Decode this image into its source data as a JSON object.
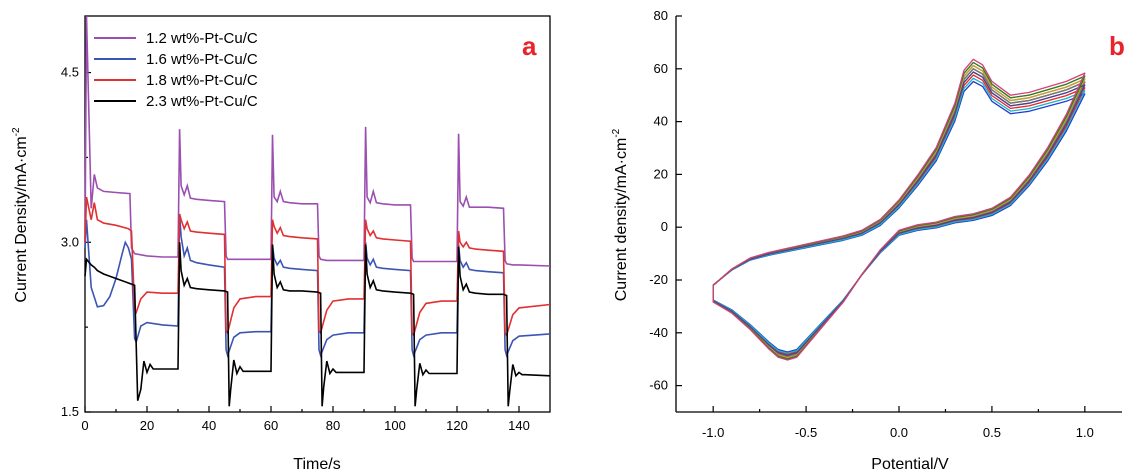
{
  "chart_data": [
    {
      "type": "line",
      "panel_label": "a",
      "xlabel": "Time/s",
      "ylabel": "Current Density/mA·cm",
      "ylabel_sup": "-2",
      "xlim": [
        0,
        150
      ],
      "ylim": [
        1.5,
        5.0
      ],
      "xticks": [
        "0",
        "20",
        "40",
        "60",
        "80",
        "100",
        "120",
        "140"
      ],
      "yticks": [
        "1.5",
        "3.0",
        "4.5"
      ],
      "legend_position": "top-left",
      "series": [
        {
          "name": "1.2 wt%-Pt-Cu/C",
          "color": "#9b4fb0",
          "x": [
            0,
            0.5,
            2,
            3,
            4,
            6,
            10,
            14.5,
            15,
            16,
            20,
            25,
            30,
            30.5,
            31,
            32,
            33,
            34,
            36,
            40,
            45,
            45.5,
            46,
            48,
            50,
            55,
            60,
            60.5,
            61,
            62,
            63,
            64,
            66,
            70,
            75,
            75.5,
            76,
            78,
            80,
            85,
            90,
            90.5,
            91,
            92,
            93,
            94,
            96,
            100,
            105,
            105.5,
            106,
            108,
            110,
            115,
            120,
            120.5,
            121,
            122,
            123,
            124,
            126,
            130,
            135,
            135.5,
            136,
            138,
            140,
            150
          ],
          "y": [
            3.0,
            5.0,
            3.3,
            3.6,
            3.48,
            3.45,
            3.44,
            3.43,
            2.95,
            2.9,
            2.88,
            2.87,
            2.87,
            4.0,
            3.5,
            3.42,
            3.5,
            3.39,
            3.38,
            3.37,
            3.36,
            2.88,
            2.85,
            2.85,
            2.85,
            2.85,
            2.85,
            3.95,
            3.4,
            3.36,
            3.45,
            3.36,
            3.35,
            3.34,
            3.34,
            2.88,
            2.85,
            2.84,
            2.84,
            2.84,
            2.84,
            4.02,
            3.4,
            3.35,
            3.45,
            3.35,
            3.34,
            3.33,
            3.33,
            2.86,
            2.83,
            2.83,
            2.83,
            2.83,
            2.83,
            3.96,
            3.36,
            3.32,
            3.4,
            3.31,
            3.31,
            3.31,
            3.3,
            2.84,
            2.81,
            2.8,
            2.8,
            2.79
          ]
        },
        {
          "name": "1.6 wt%-Pt-Cu/C",
          "color": "#3b55b5",
          "x": [
            0,
            0.5,
            2,
            4,
            6,
            8,
            10,
            12,
            13,
            14,
            15,
            16,
            16.5,
            18,
            20,
            25,
            30,
            30.5,
            31,
            32,
            33,
            34,
            36,
            40,
            45,
            45.5,
            46,
            48,
            50,
            55,
            60,
            60.5,
            61,
            62,
            63,
            64,
            66,
            70,
            75,
            75.5,
            76,
            78,
            80,
            85,
            90,
            90.5,
            91,
            92,
            93,
            94,
            96,
            100,
            105,
            105.5,
            106,
            108,
            110,
            115,
            120,
            120.5,
            121,
            122,
            123,
            124,
            126,
            130,
            135,
            135.5,
            136,
            138,
            140,
            150
          ],
          "y": [
            2.95,
            3.2,
            2.6,
            2.43,
            2.44,
            2.52,
            2.68,
            2.9,
            3.0,
            2.95,
            2.85,
            2.15,
            2.12,
            2.26,
            2.29,
            2.27,
            2.26,
            3.25,
            3.05,
            2.88,
            2.95,
            2.84,
            2.82,
            2.8,
            2.78,
            2.05,
            2.0,
            2.16,
            2.2,
            2.21,
            2.21,
            2.98,
            2.86,
            2.8,
            2.84,
            2.78,
            2.77,
            2.76,
            2.75,
            2.05,
            2.0,
            2.14,
            2.18,
            2.2,
            2.2,
            3.0,
            2.86,
            2.8,
            2.85,
            2.78,
            2.77,
            2.76,
            2.75,
            2.05,
            2.0,
            2.14,
            2.18,
            2.2,
            2.2,
            2.98,
            2.84,
            2.78,
            2.82,
            2.76,
            2.75,
            2.74,
            2.73,
            2.05,
            2.0,
            2.13,
            2.17,
            2.19
          ]
        },
        {
          "name": "1.8 wt%-Pt-Cu/C",
          "color": "#e03030",
          "x": [
            0,
            0.5,
            2,
            3,
            4,
            6,
            10,
            14,
            15,
            16,
            16.5,
            18,
            20,
            25,
            30,
            30.5,
            31,
            32,
            33,
            34,
            36,
            40,
            45,
            45.5,
            46,
            48,
            50,
            55,
            60,
            60.5,
            61,
            62,
            63,
            64,
            66,
            70,
            75,
            75.5,
            76,
            78,
            80,
            85,
            90,
            90.5,
            91,
            92,
            93,
            94,
            96,
            100,
            105,
            105.5,
            106,
            108,
            110,
            115,
            120,
            120.5,
            121,
            122,
            123,
            124,
            126,
            130,
            135,
            135.5,
            136,
            138,
            140,
            150
          ],
          "y": [
            3.0,
            3.4,
            3.2,
            3.35,
            3.2,
            3.17,
            3.15,
            3.12,
            3.1,
            2.4,
            2.38,
            2.5,
            2.56,
            2.55,
            2.55,
            3.25,
            3.2,
            3.12,
            3.18,
            3.1,
            3.09,
            3.08,
            3.07,
            2.22,
            2.2,
            2.42,
            2.5,
            2.52,
            2.52,
            3.2,
            3.14,
            3.08,
            3.13,
            3.06,
            3.05,
            3.04,
            3.03,
            2.22,
            2.2,
            2.4,
            2.48,
            2.5,
            2.5,
            3.2,
            3.12,
            3.06,
            3.1,
            3.04,
            3.03,
            3.02,
            3.01,
            2.2,
            2.18,
            2.38,
            2.46,
            2.48,
            2.48,
            3.1,
            3.0,
            2.96,
            3.0,
            2.95,
            2.94,
            2.93,
            2.92,
            2.2,
            2.18,
            2.36,
            2.42,
            2.45
          ]
        },
        {
          "name": "2.3 wt%-Pt-Cu/C",
          "color": "#000000",
          "x": [
            0,
            0.5,
            2,
            3,
            4,
            6,
            10,
            15,
            16,
            17,
            18,
            19,
            20,
            21,
            22,
            25,
            30,
            30.5,
            31,
            32,
            33,
            34,
            36,
            40,
            45,
            46,
            46.5,
            47,
            48,
            49,
            50,
            51,
            52,
            55,
            60,
            60.5,
            61,
            62,
            63,
            64,
            66,
            70,
            75,
            76,
            76.5,
            77,
            78,
            79,
            80,
            81,
            82,
            85,
            90,
            90.5,
            91,
            92,
            93,
            94,
            96,
            100,
            105,
            106,
            106.5,
            107,
            108,
            109,
            110,
            111,
            112,
            115,
            120,
            120.5,
            121,
            122,
            123,
            124,
            126,
            130,
            135,
            136,
            136.5,
            137,
            138,
            139,
            140,
            141,
            142,
            150
          ],
          "y": [
            2.7,
            2.85,
            2.8,
            2.78,
            2.75,
            2.72,
            2.68,
            2.63,
            2.62,
            1.6,
            1.7,
            1.95,
            1.85,
            1.92,
            1.88,
            1.88,
            1.88,
            3.0,
            2.75,
            2.62,
            2.68,
            2.6,
            2.59,
            2.58,
            2.57,
            2.56,
            1.55,
            1.7,
            1.96,
            1.84,
            1.9,
            1.86,
            1.86,
            1.86,
            1.86,
            2.98,
            2.72,
            2.6,
            2.65,
            2.58,
            2.57,
            2.57,
            2.56,
            2.55,
            1.55,
            1.72,
            1.95,
            1.84,
            1.88,
            1.85,
            1.85,
            1.85,
            1.85,
            2.98,
            2.72,
            2.6,
            2.66,
            2.58,
            2.57,
            2.56,
            2.55,
            2.54,
            1.55,
            1.7,
            1.93,
            1.83,
            1.87,
            1.84,
            1.84,
            1.84,
            1.84,
            2.96,
            2.7,
            2.58,
            2.63,
            2.56,
            2.55,
            2.54,
            2.54,
            2.53,
            1.55,
            1.68,
            1.92,
            1.82,
            1.85,
            1.83,
            1.83,
            1.82
          ]
        }
      ]
    },
    {
      "type": "line",
      "panel_label": "b",
      "xlabel": "Potential/V",
      "ylabel": "Current density/mA·cm",
      "ylabel_sup": "-2",
      "xlim": [
        -1.2,
        1.2
      ],
      "ylim": [
        -70,
        80
      ],
      "xticks": [
        "-1.0",
        "-0.5",
        "0.0",
        "0.5",
        "1.0"
      ],
      "yticks": [
        "-60",
        "-40",
        "-20",
        "0",
        "20",
        "40",
        "60",
        "80"
      ],
      "grid": false,
      "curve_colors": [
        "#000000",
        "#e8242a",
        "#1f3fcf",
        "#22a84a",
        "#9b4fb0",
        "#e07b21",
        "#18b3c8",
        "#7a7a7a",
        "#c8a020",
        "#5c3a8f",
        "#2a7f2a",
        "#d4407a"
      ],
      "cycle_template": {
        "x": [
          -1.0,
          -0.9,
          -0.8,
          -0.7,
          -0.6,
          -0.5,
          -0.4,
          -0.3,
          -0.2,
          -0.1,
          0.0,
          0.1,
          0.2,
          0.3,
          0.35,
          0.4,
          0.45,
          0.5,
          0.6,
          0.7,
          0.8,
          0.9,
          1.0,
          0.9,
          0.8,
          0.7,
          0.6,
          0.5,
          0.4,
          0.3,
          0.2,
          0.1,
          0.0,
          -0.1,
          -0.2,
          -0.3,
          -0.4,
          -0.5,
          -0.55,
          -0.6,
          -0.65,
          -0.7,
          -0.8,
          -0.9,
          -1.0
        ],
        "y": [
          -22,
          -16,
          -12,
          -10,
          -8.5,
          -7,
          -5.5,
          -4,
          -2,
          2,
          9,
          18,
          28,
          44,
          56,
          60,
          58,
          52,
          47,
          48,
          50,
          52,
          55,
          40,
          28,
          18,
          10,
          6,
          4,
          3,
          1,
          0,
          -2,
          -9,
          -18,
          -28,
          -36,
          -44,
          -48,
          -49,
          -48,
          -45,
          -38,
          -32,
          -28
        ]
      },
      "cycle_offsets": [
        0,
        -2,
        -4,
        -1,
        1,
        2,
        -3,
        0,
        1,
        -1,
        2,
        3
      ]
    }
  ]
}
